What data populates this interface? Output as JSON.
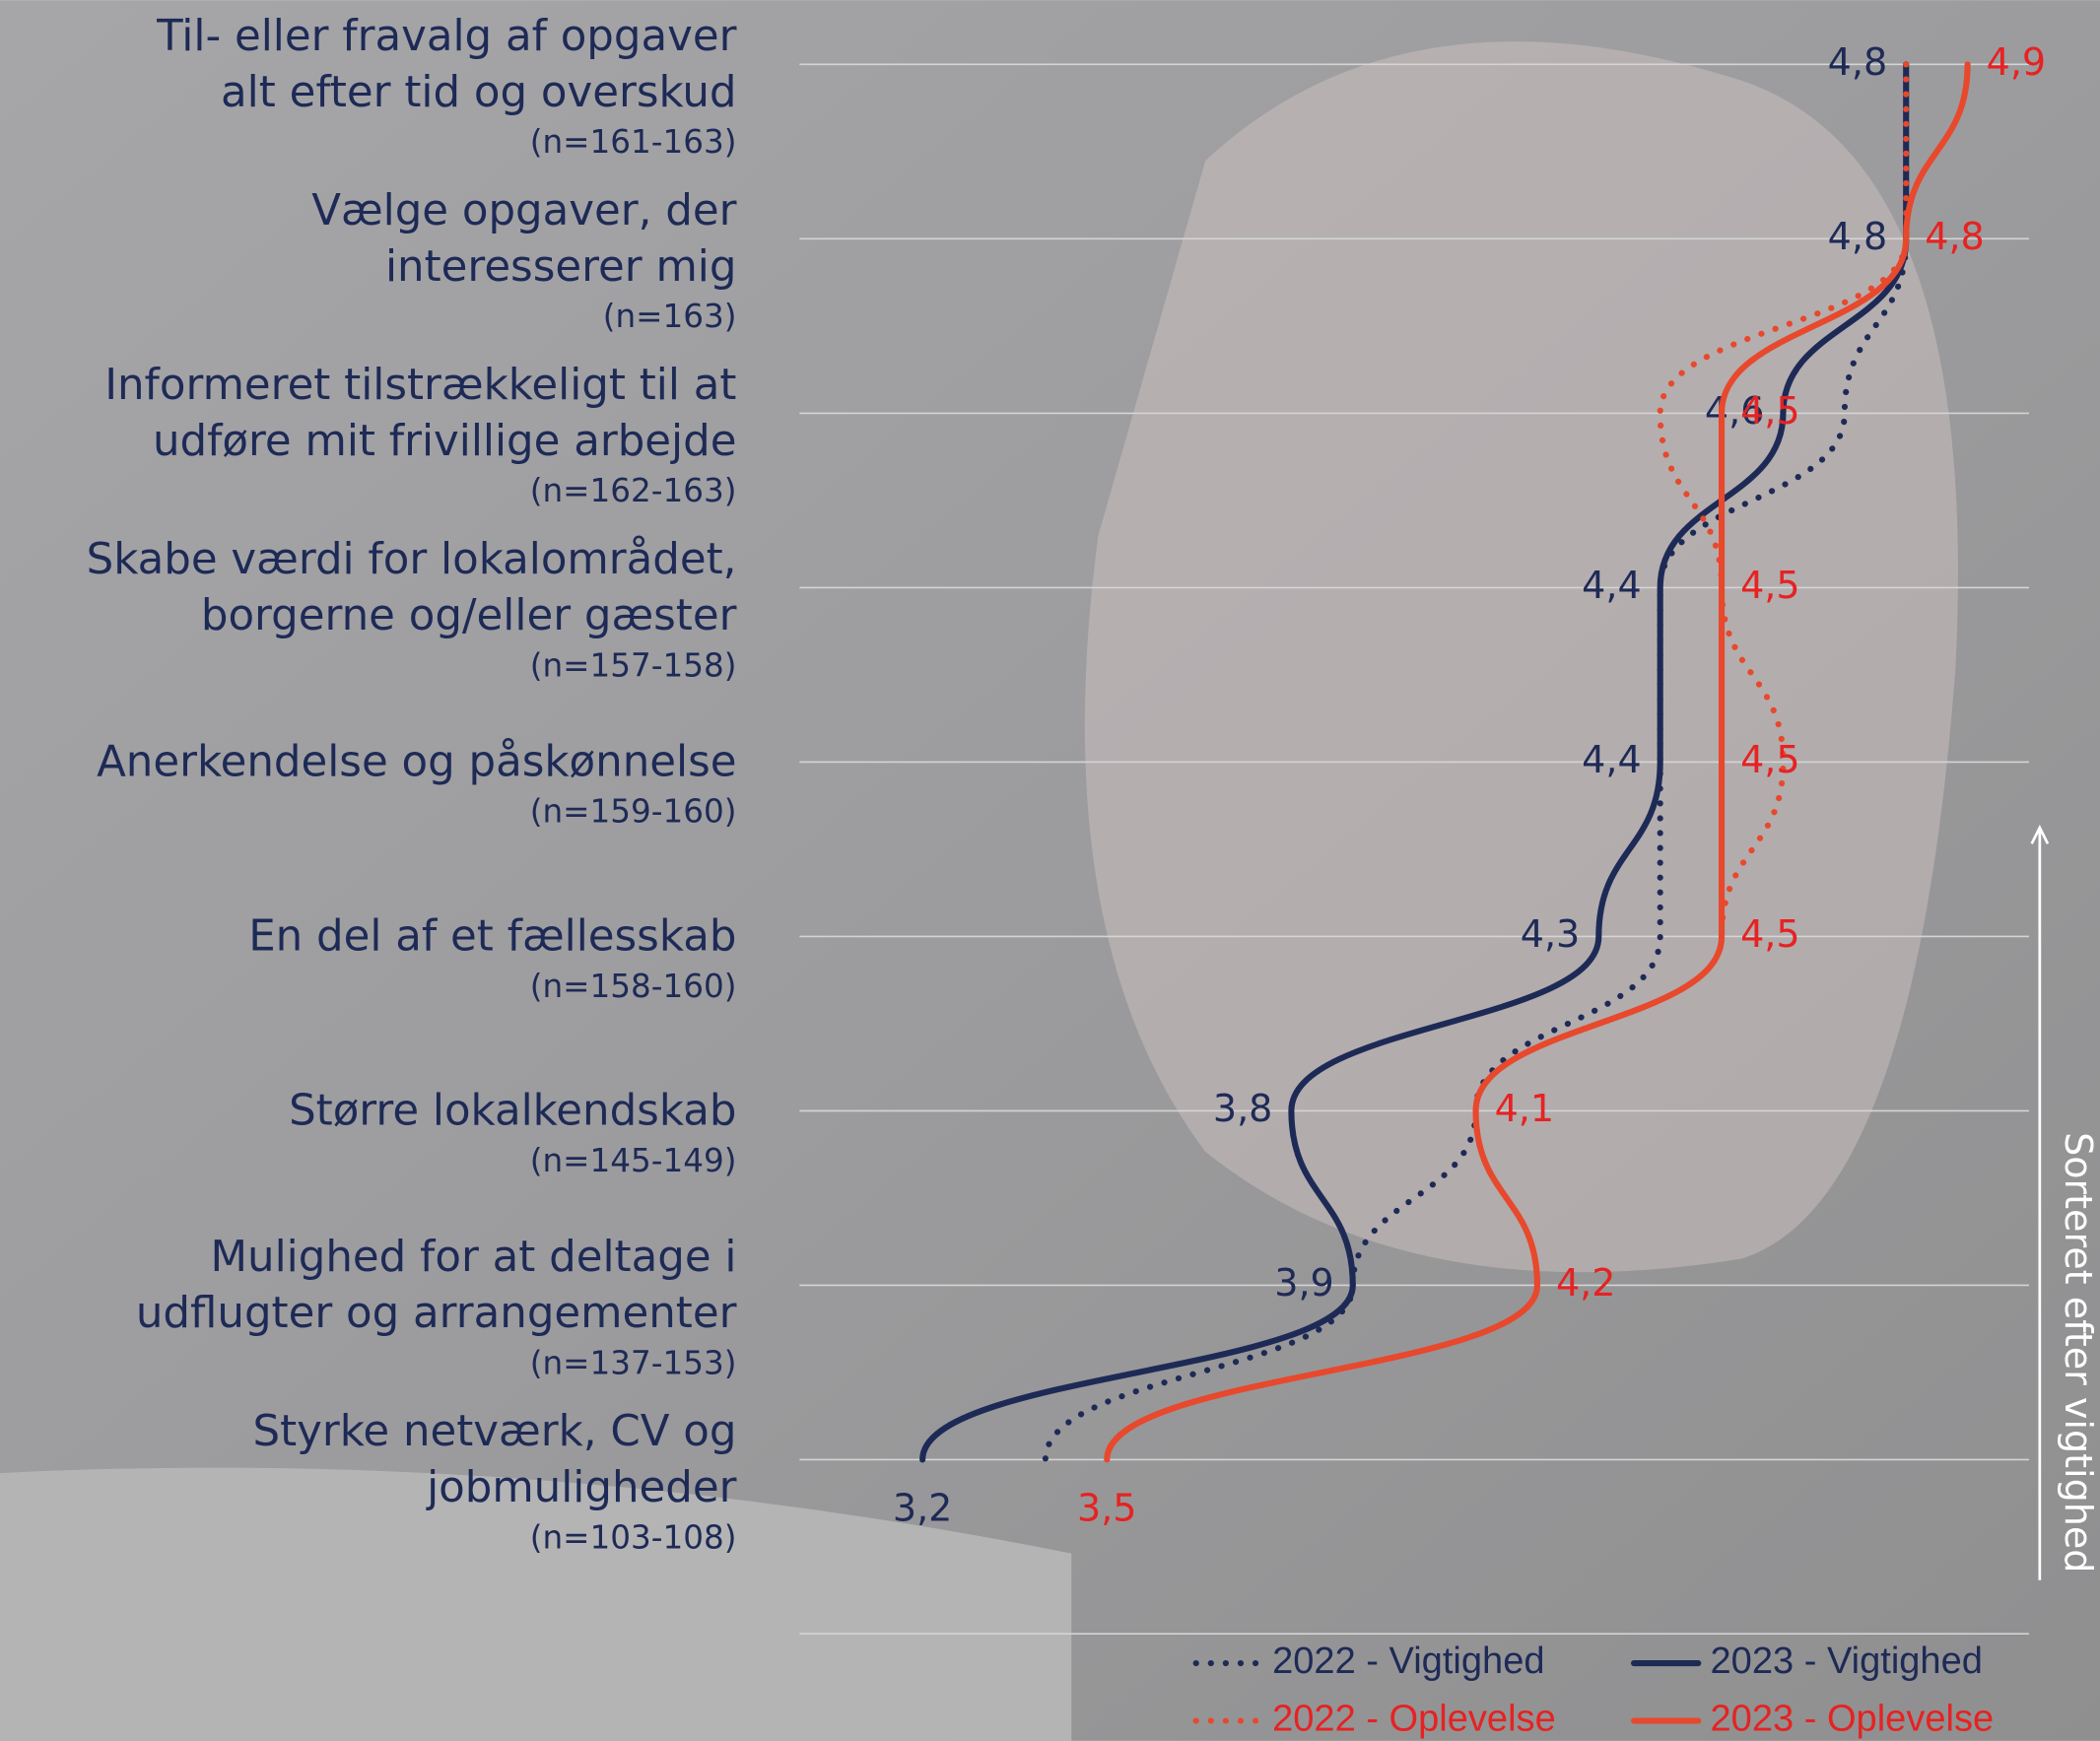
{
  "chart_data": {
    "type": "line",
    "orientation": "horizontal",
    "categories": [
      "Til- eller fravalg af opgaver\nalt efter tid og overskud",
      "Vælge opgaver, der\ninteresserer mig",
      "Informeret tilstrækkeligt til at\nudføre mit frivillige arbejde",
      "Skabe værdi for lokalområdet,\nborgerne og/eller gæster",
      "Anerkendelse og påskønnelse",
      "En del af et fællesskab",
      "Større lokalkendskab",
      "Mulighed for at deltage i\nudflugter og arrangementer",
      "Styrke netværk, CV og\njobmuligheder"
    ],
    "sample_sizes": [
      "(n=161-163)",
      "(n=163)",
      "(n=162-163)",
      "(n=157-158)",
      "(n=159-160)",
      "(n=158-160)",
      "(n=145-149)",
      "(n=137-153)",
      "(n=103-108)"
    ],
    "xlim": [
      3.0,
      5.0
    ],
    "grid": true,
    "annotation": "Sorteret efter vigtighed",
    "series": [
      {
        "name": "2022 - Vigtighed",
        "color": "#1e2a56",
        "style": "dotted",
        "values": [
          4.8,
          4.8,
          4.7,
          4.4,
          4.4,
          4.4,
          4.1,
          3.9,
          3.4
        ]
      },
      {
        "name": "2023 - Vigtighed",
        "color": "#1e2a56",
        "style": "solid",
        "values": [
          4.8,
          4.8,
          4.6,
          4.4,
          4.4,
          4.3,
          3.8,
          3.9,
          3.2
        ],
        "value_labels": [
          "4,8",
          "4,8",
          "4,6",
          "4,4",
          "4,4",
          "4,3",
          "3,8",
          "3,9",
          "3,2"
        ]
      },
      {
        "name": "2022 - Oplevelse",
        "color": "#e8482c",
        "style": "dotted",
        "values": [
          4.8,
          4.8,
          4.4,
          4.5,
          4.6,
          4.5,
          4.1,
          4.2,
          3.5
        ]
      },
      {
        "name": "2023 - Oplevelse",
        "color": "#e8482c",
        "style": "solid",
        "values": [
          4.9,
          4.8,
          4.5,
          4.5,
          4.5,
          4.5,
          4.1,
          4.2,
          3.5
        ],
        "value_labels": [
          "4,9",
          "4,8",
          "4,5",
          "4,5",
          "4,5",
          "4,5",
          "4,1",
          "4,2",
          "3,5"
        ]
      }
    ]
  }
}
